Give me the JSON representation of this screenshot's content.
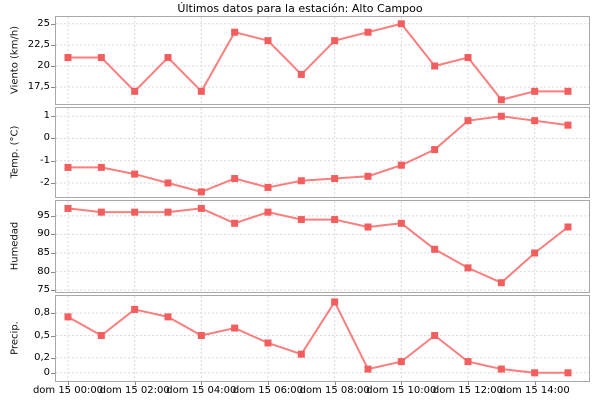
{
  "title": "Últimos datos para la estación: Alto Campoo",
  "station": "Alto Campoo",
  "colors": {
    "line": "#fb7e7e",
    "marker": "#f25d5d",
    "grid": "#d9d9d9",
    "plot_border": "#a8a8a8",
    "tick_mark": "#888888",
    "text": "#000000",
    "background": "#ffffff"
  },
  "x_axis": {
    "tick_labels": [
      {
        "i": 0,
        "label": "dom 15 00:00"
      },
      {
        "i": 2,
        "label": "dom 15 02:00"
      },
      {
        "i": 4,
        "label": "dom 15 04:00"
      },
      {
        "i": 6,
        "label": "dom 15 06:00"
      },
      {
        "i": 8,
        "label": "dom 15 08:00"
      },
      {
        "i": 10,
        "label": "dom 15 10:00"
      },
      {
        "i": 12,
        "label": "dom 15 12:00"
      },
      {
        "i": 14,
        "label": "dom 15 14:00"
      }
    ]
  },
  "chart_data": {
    "type": "line",
    "title": "Últimos datos para la estación: Alto Campoo",
    "x": {
      "times": [
        "00:00",
        "01:00",
        "02:00",
        "03:00",
        "04:00",
        "05:00",
        "06:00",
        "07:00",
        "08:00",
        "09:00",
        "10:00",
        "11:00",
        "12:00",
        "13:00",
        "14:00",
        "15:00"
      ],
      "day": "dom 15",
      "grid_every": 2
    },
    "legend_position": "none",
    "grid": "dashed",
    "subplots": [
      {
        "name": "viento",
        "ylabel": "Viento (km/h)",
        "ylim": [
          15.5,
          25.8
        ],
        "yticks": [
          {
            "v": 25,
            "label": "25"
          },
          {
            "v": 22.5,
            "label": "22,5"
          },
          {
            "v": 20,
            "label": "20"
          },
          {
            "v": 17.5,
            "label": "17,5"
          }
        ],
        "values": [
          21,
          21,
          17,
          21,
          17,
          24,
          23,
          19,
          23,
          24,
          25,
          20,
          21,
          16,
          17,
          17
        ]
      },
      {
        "name": "temperatura",
        "ylabel": "Temp. (°C)",
        "ylim": [
          -2.63,
          1.37
        ],
        "yticks": [
          {
            "v": 1,
            "label": "1"
          },
          {
            "v": 0,
            "label": "0"
          },
          {
            "v": -1,
            "label": "-1"
          },
          {
            "v": -2,
            "label": "-2"
          }
        ],
        "values": [
          -1.3,
          -1.3,
          -1.6,
          -2.0,
          -2.4,
          -1.8,
          -2.2,
          -1.9,
          -1.8,
          -1.7,
          -1.2,
          -0.5,
          0.8,
          1.0,
          0.8,
          0.6
        ]
      },
      {
        "name": "humedad",
        "ylabel": "Humedad",
        "ylim": [
          74.5,
          99
        ],
        "yticks": [
          {
            "v": 95,
            "label": "95"
          },
          {
            "v": 90,
            "label": "90"
          },
          {
            "v": 85,
            "label": "85"
          },
          {
            "v": 80,
            "label": "80"
          },
          {
            "v": 75,
            "label": "75"
          }
        ],
        "values": [
          97,
          96,
          96,
          96,
          97,
          93,
          96,
          94,
          94,
          92,
          93,
          86,
          81,
          77,
          85,
          92
        ]
      },
      {
        "name": "precipitacion",
        "ylabel": "Precip.",
        "ylim": [
          -0.11,
          1.03
        ],
        "yticks": [
          {
            "v": 0.8,
            "label": "0,8"
          },
          {
            "v": 0.5,
            "label": "0,5"
          },
          {
            "v": 0.2,
            "label": "0,2"
          },
          {
            "v": 0,
            "label": "0"
          }
        ],
        "values": [
          0.75,
          0.5,
          0.85,
          0.75,
          0.5,
          0.6,
          0.4,
          0.25,
          0.95,
          0.05,
          0.15,
          0.5,
          0.15,
          0.05,
          0,
          0
        ]
      }
    ]
  }
}
